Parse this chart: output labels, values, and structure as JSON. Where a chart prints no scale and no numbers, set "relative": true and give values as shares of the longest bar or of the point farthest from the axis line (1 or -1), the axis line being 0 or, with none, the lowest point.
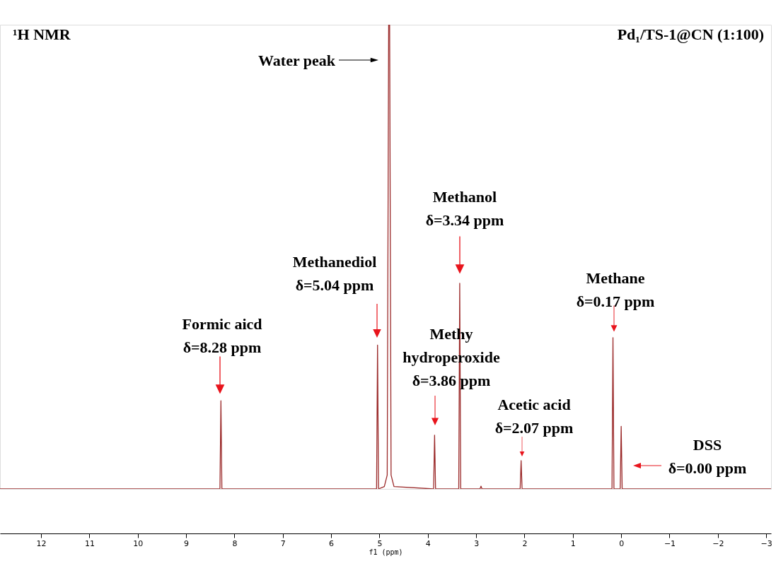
{
  "chart_data": {
    "type": "line",
    "relative": true,
    "title": "Pd₁/TS-1@CN (1:100)",
    "xlabel": "f1 (ppm)",
    "x": [
      12.85,
      8.3,
      8.28,
      8.26,
      5.06,
      5.04,
      5.02,
      4.9,
      4.84,
      4.81,
      4.79,
      4.76,
      4.7,
      3.88,
      3.86,
      3.84,
      3.36,
      3.34,
      3.32,
      2.92,
      2.9,
      2.88,
      2.09,
      2.07,
      2.05,
      0.19,
      0.17,
      0.15,
      0.02,
      0.0,
      -0.02,
      -3.1
    ],
    "series": [
      {
        "color": "#9b2a2a",
        "values": [
          0,
          0,
          0.19,
          0,
          0,
          0.31,
          0,
          0.005,
          0.03,
          1,
          1,
          0.03,
          0.005,
          0,
          0.116,
          0,
          0,
          0.443,
          0,
          0,
          0.006,
          0,
          0,
          0.061,
          0,
          0,
          0.326,
          0,
          0,
          0.135,
          0,
          0
        ]
      }
    ],
    "xlim": [
      12.85,
      -3.1
    ],
    "xticks": [
      12,
      11,
      10,
      9,
      8,
      7,
      6,
      5,
      4,
      3,
      2,
      1,
      0,
      -1,
      -2,
      -3
    ],
    "tick_labels": "x",
    "grid": false,
    "marker": "none",
    "line_style": "solid",
    "annotations": [
      "¹H NMR",
      "Water peak",
      "Formic aicd\nδ=8.28 ppm",
      "Methanediol\nδ=5.04 ppm",
      "Methy\nhydroperoxide\nδ=3.86 ppm",
      "Methanol\nδ=3.34 ppm",
      "Acetic acid\nδ=2.07 ppm",
      "Methane\nδ=0.17 ppm",
      "DSS\nδ=0.00 ppm"
    ]
  }
}
